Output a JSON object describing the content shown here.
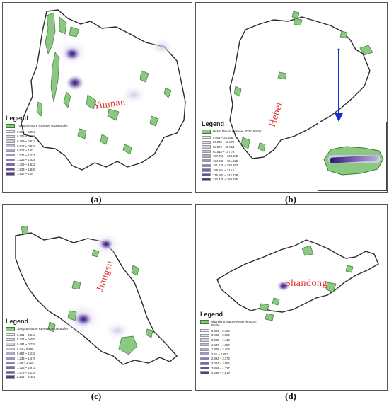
{
  "colors": {
    "boundary": "#2a2a2a",
    "reserve_fill": "#8bc982",
    "reserve_stroke": "#3d7a36",
    "label_red": "#e03030",
    "arrow_blue": "#1a2ecc",
    "density_ramp": [
      "#f2eff8",
      "#e4def0",
      "#d5cce7",
      "#c5b9de",
      "#b4a6d3",
      "#a293c8",
      "#8f7ebb",
      "#7b68ad",
      "#66529d",
      "#513c8c",
      "#3d2678"
    ]
  },
  "panels": [
    {
      "caption": "(a)",
      "province": "Yunnan",
      "legend": {
        "title": "Legend",
        "layer": "Yunnan Nature Reserve 500m Buffer",
        "classes": [
          "0.001 ~ 0.204",
          "0.205 ~ 0.408",
          "0.409 ~ 0.612",
          "0.613 ~ 0.816",
          "0.817 ~ 1.02",
          "1.021 ~ 1.224",
          "1.225 ~ 1.428",
          "1.429 ~ 1.632",
          "1.633 ~ 1.836",
          "1.837 ~ 2.04"
        ]
      }
    },
    {
      "caption": "(b)",
      "province": "Hebei",
      "legend": {
        "title": "Legend",
        "layer": "Hebei Nature Reserve 500m Buffer",
        "classes": [
          "0.001 ~ 26.938",
          "26.939 ~ 53.875",
          "53.876 ~ 80.813",
          "80.814 ~ 107.75",
          "107.751 ~ 134.688",
          "134.689 ~ 161.625",
          "161.626 ~ 188.563",
          "188.564 ~ 215.5",
          "215.501 ~ 242.438",
          "242.439 ~ 269.375"
        ]
      }
    },
    {
      "caption": "(c)",
      "province": "Jiangsu",
      "legend": {
        "title": "Legend",
        "layer": "Jiangsu Nature Reserve 500m Buffer",
        "classes": [
          "0.001 ~ 0.246",
          "0.247 ~ 0.493",
          "0.494 ~ 0.739",
          "0.74 ~ 0.986",
          "0.987 ~ 1.232",
          "1.233 ~ 1.479",
          "1.48 ~ 1.725",
          "1.726 ~ 1.972",
          "1.973 ~ 2.218",
          "2.219 ~ 2.464"
        ]
      }
    },
    {
      "caption": "(d)",
      "province": "Shandong",
      "legend": {
        "title": "Legend",
        "layer": "shandong Nature Reserve 500m Buffer",
        "classes": [
          "0.001 ~ 0.482",
          "0.483 ~ 0.964",
          "0.965 ~ 1.446",
          "1.447 ~ 1.927",
          "1.928 ~ 2.409",
          "2.41 ~ 2.891",
          "2.892 ~ 3.373",
          "3.374 ~ 3.855",
          "3.856 ~ 4.337",
          "4.338 ~ 4.819"
        ]
      }
    }
  ]
}
